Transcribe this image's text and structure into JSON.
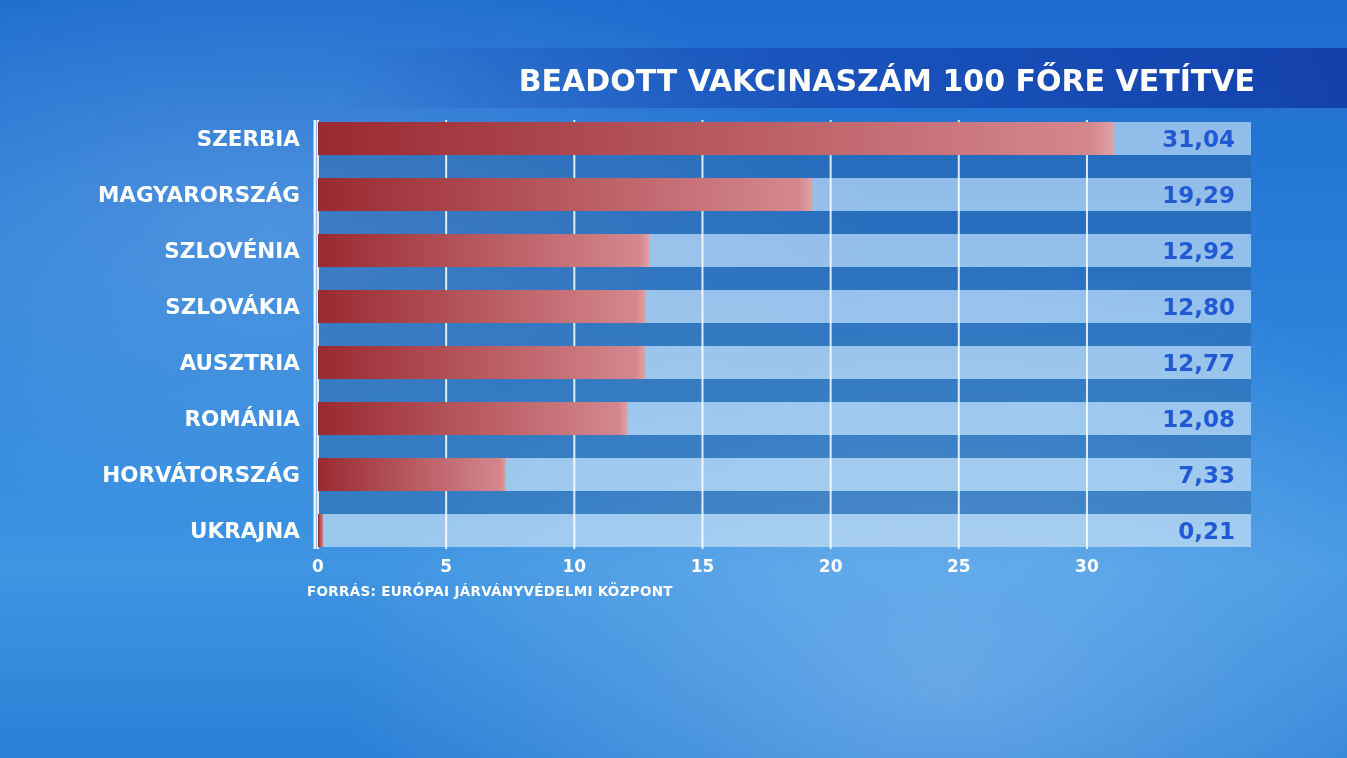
{
  "chart_data": {
    "type": "bar",
    "orientation": "horizontal",
    "title": "BEADOTT VAKCINASZÁM 100 FŐRE VETÍTVE",
    "categories": [
      "SZERBIA",
      "MAGYARORSZÁG",
      "SZLOVÉNIA",
      "SZLOVÁKIA",
      "AUSZTRIA",
      "ROMÁNIA",
      "HORVÁTORSZÁG",
      "UKRAJNA"
    ],
    "values": [
      31.04,
      19.29,
      12.92,
      12.8,
      12.77,
      12.08,
      7.33,
      0.21
    ],
    "value_labels": [
      "31,04",
      "19,29",
      "12,92",
      "12,80",
      "12,77",
      "12,08",
      "7,33",
      "0,21"
    ],
    "color": "#b5303a",
    "xlim": [
      0,
      36.4
    ],
    "xticks": [
      0,
      5,
      10,
      15,
      20,
      25,
      30
    ],
    "grid": "x",
    "annotations": [
      "FORRÁS: EURÓPAI JÁRVÁNYVÉDELMI KÖZPONT"
    ]
  }
}
